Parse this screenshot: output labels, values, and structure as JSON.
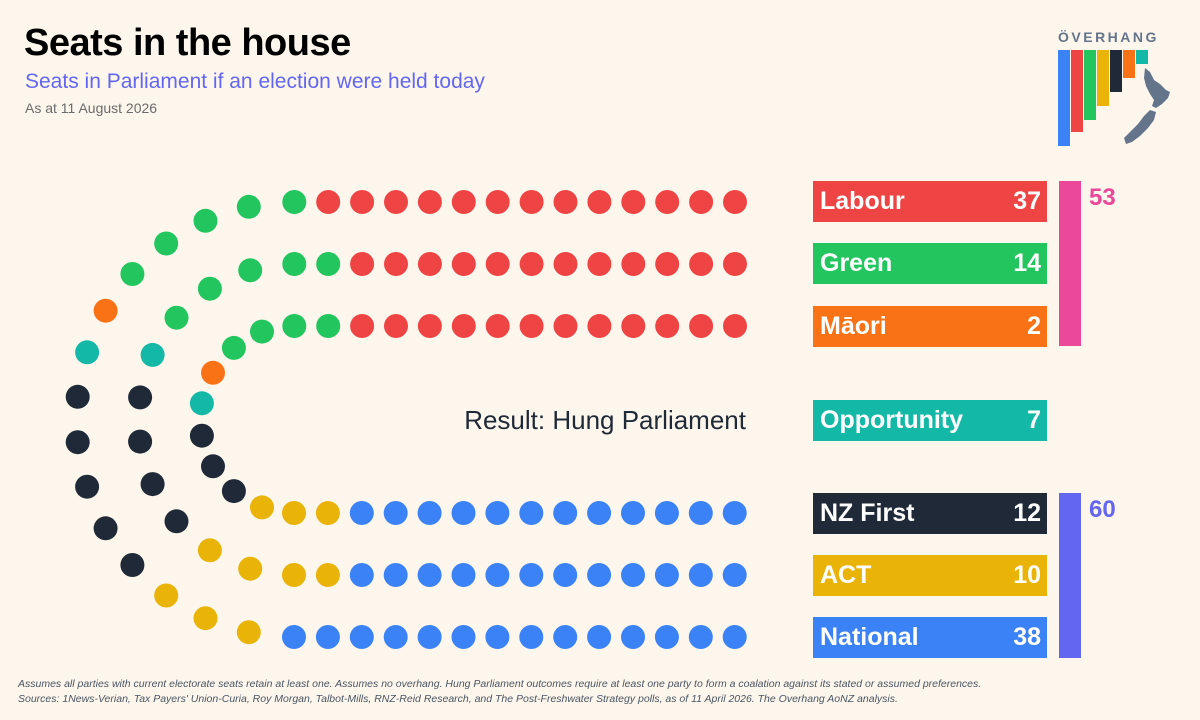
{
  "header": {
    "title": "Seats in the house",
    "subtitle": "Seats in Parliament if an election were held today",
    "date": "As at 11 August 2026"
  },
  "logo": {
    "text": "ÖVERHANG",
    "icon": "nz-map-icon"
  },
  "result_text": "Result: Hung Parliament",
  "chart_data": {
    "type": "parliament",
    "total_seats": 120,
    "parties": [
      {
        "name": "Labour",
        "seats": 37,
        "color": "#ef4444"
      },
      {
        "name": "Green",
        "seats": 14,
        "color": "#22c55e"
      },
      {
        "name": "Māori",
        "seats": 2,
        "color": "#f97316"
      },
      {
        "name": "Opportunity",
        "seats": 7,
        "color": "#14b8a6"
      },
      {
        "name": "NZ First",
        "seats": 12,
        "color": "#1f2937"
      },
      {
        "name": "ACT",
        "seats": 10,
        "color": "#eab308"
      },
      {
        "name": "National",
        "seats": 38,
        "color": "#3b82f6"
      }
    ],
    "blocs": [
      {
        "parties": [
          "Labour",
          "Green",
          "Māori"
        ],
        "total": 53,
        "color": "#ec4899"
      },
      {
        "parties": [
          "NZ First",
          "ACT",
          "National"
        ],
        "total": 60,
        "color": "#6366f1"
      }
    ]
  },
  "footer": {
    "line1": "Assumes all parties with current electorate seats retain at least one. Assumes no overhang. Hung Parliament outcomes require at least one party to form a coalation against its stated or assumed preferences.",
    "line2": "Sources: 1News-Verian, Tax Payers' Union-Curia, Roy Morgan, Talbot-Mills, RNZ-Reid Research, and The Post-Freshwater Strategy polls, as of 11 April 2026. The Overhang AoNZ analysis."
  }
}
